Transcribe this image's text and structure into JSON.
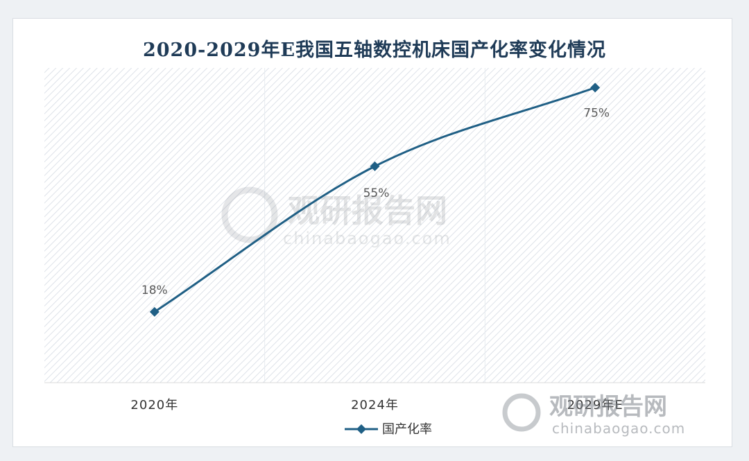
{
  "title": "2020-2029年E我国五轴数控机床国产化率变化情况",
  "colors": {
    "series": "#1f5f85",
    "title": "#1f3b57",
    "hatch": "#d5dbe3"
  },
  "watermark": {
    "brand": "观研报告网",
    "url": "chinabaogao.com"
  },
  "chart_data": {
    "type": "line",
    "categories": [
      "2020年",
      "2024年",
      "2029年E"
    ],
    "series": [
      {
        "name": "国产化率",
        "values": [
          18,
          55,
          75
        ],
        "labels": [
          "18%",
          "55%",
          "75%"
        ],
        "marker": "diamond",
        "smooth": true
      }
    ],
    "ylim": [
      0,
      80
    ],
    "grid": "vertical category dividers",
    "legend": "bottom-center",
    "xlabel": "",
    "ylabel": ""
  }
}
